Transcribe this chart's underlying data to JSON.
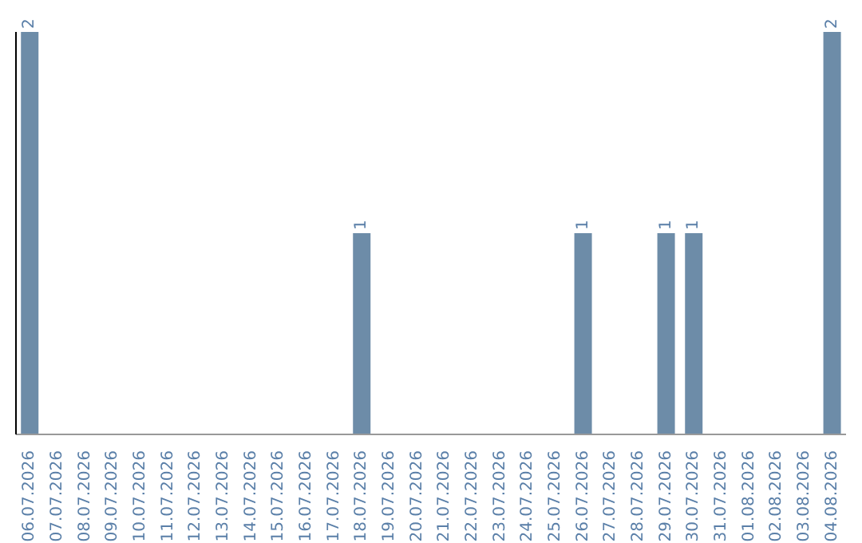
{
  "chart_data": {
    "type": "bar",
    "categories": [
      "06.07.2026",
      "07.07.2026",
      "08.07.2026",
      "09.07.2026",
      "10.07.2026",
      "11.07.2026",
      "12.07.2026",
      "13.07.2026",
      "14.07.2026",
      "15.07.2026",
      "16.07.2026",
      "17.07.2026",
      "18.07.2026",
      "19.07.2026",
      "20.07.2026",
      "21.07.2026",
      "22.07.2026",
      "23.07.2026",
      "24.07.2026",
      "25.07.2026",
      "26.07.2026",
      "27.07.2026",
      "28.07.2026",
      "29.07.2026",
      "30.07.2026",
      "31.07.2026",
      "01.08.2026",
      "02.08.2026",
      "03.08.2026",
      "04.08.2026"
    ],
    "values": [
      2,
      0,
      0,
      0,
      0,
      0,
      0,
      0,
      0,
      0,
      0,
      0,
      1,
      0,
      0,
      0,
      0,
      0,
      0,
      0,
      1,
      0,
      0,
      1,
      1,
      0,
      0,
      0,
      0,
      2
    ],
    "value_labels": [
      "2",
      null,
      null,
      null,
      null,
      null,
      null,
      null,
      null,
      null,
      null,
      null,
      "1",
      null,
      null,
      null,
      null,
      null,
      null,
      null,
      "1",
      null,
      null,
      "1",
      "1",
      null,
      null,
      null,
      null,
      "2"
    ],
    "color": "#6d8ca8",
    "grid": false,
    "legend": false
  }
}
